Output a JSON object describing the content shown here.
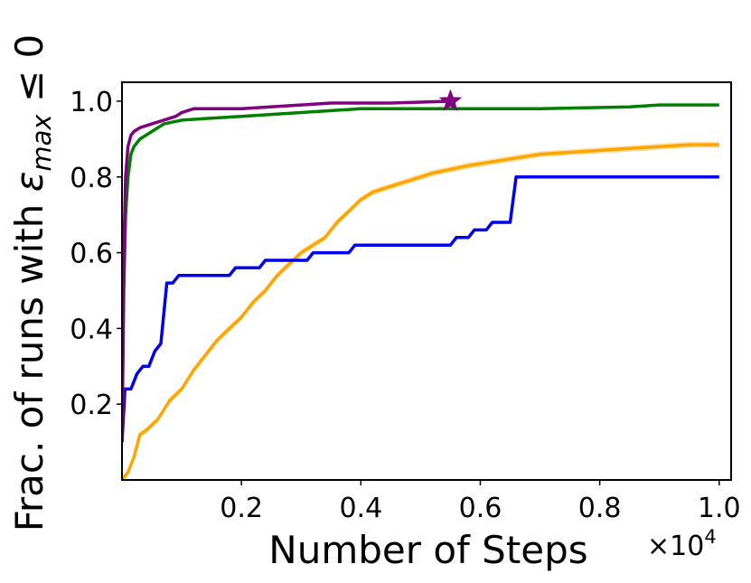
{
  "chart_data": {
    "type": "line",
    "xlabel": "Number of Steps",
    "ylabel_prefix": "Frac. of runs with ",
    "ylabel_symbol": "ε",
    "ylabel_sub": "max",
    "ylabel_suffix": " ≤ 0",
    "x_multiplier_label": "×10",
    "x_multiplier_exp": "4",
    "xlim": [
      0,
      1.02
    ],
    "ylim": [
      0,
      1.05
    ],
    "xticks": [
      0.2,
      0.4,
      0.6,
      0.8,
      1.0
    ],
    "xtick_labels": [
      "0.2",
      "0.4",
      "0.6",
      "0.8",
      "1.0"
    ],
    "yticks": [
      0.2,
      0.4,
      0.6,
      0.8,
      1.0
    ],
    "ytick_labels": [
      "0.2",
      "0.4",
      "0.6",
      "0.8",
      "1.0"
    ],
    "grid": false,
    "series": [
      {
        "color": "#FFA500",
        "band": true,
        "band_halfwidth": 0.008,
        "points": [
          [
            0.0,
            0.0
          ],
          [
            0.01,
            0.02
          ],
          [
            0.02,
            0.06
          ],
          [
            0.03,
            0.12
          ],
          [
            0.04,
            0.13
          ],
          [
            0.06,
            0.16
          ],
          [
            0.08,
            0.21
          ],
          [
            0.1,
            0.24
          ],
          [
            0.12,
            0.29
          ],
          [
            0.14,
            0.33
          ],
          [
            0.16,
            0.37
          ],
          [
            0.18,
            0.4
          ],
          [
            0.2,
            0.43
          ],
          [
            0.22,
            0.47
          ],
          [
            0.24,
            0.5
          ],
          [
            0.26,
            0.54
          ],
          [
            0.28,
            0.57
          ],
          [
            0.3,
            0.6
          ],
          [
            0.32,
            0.62
          ],
          [
            0.34,
            0.64
          ],
          [
            0.36,
            0.68
          ],
          [
            0.38,
            0.71
          ],
          [
            0.4,
            0.74
          ],
          [
            0.42,
            0.76
          ],
          [
            0.44,
            0.77
          ],
          [
            0.46,
            0.78
          ],
          [
            0.48,
            0.79
          ],
          [
            0.5,
            0.8
          ],
          [
            0.52,
            0.81
          ],
          [
            0.55,
            0.82
          ],
          [
            0.58,
            0.83
          ],
          [
            0.62,
            0.84
          ],
          [
            0.66,
            0.85
          ],
          [
            0.7,
            0.86
          ],
          [
            0.75,
            0.865
          ],
          [
            0.8,
            0.87
          ],
          [
            0.85,
            0.875
          ],
          [
            0.9,
            0.88
          ],
          [
            0.95,
            0.885
          ],
          [
            1.0,
            0.885
          ]
        ]
      },
      {
        "color": "#0000EE",
        "band": false,
        "step": true,
        "points": [
          [
            0.0,
            0.1
          ],
          [
            0.005,
            0.24
          ],
          [
            0.015,
            0.24
          ],
          [
            0.025,
            0.28
          ],
          [
            0.035,
            0.3
          ],
          [
            0.045,
            0.3
          ],
          [
            0.055,
            0.34
          ],
          [
            0.065,
            0.36
          ],
          [
            0.075,
            0.52
          ],
          [
            0.085,
            0.52
          ],
          [
            0.095,
            0.54
          ],
          [
            0.18,
            0.54
          ],
          [
            0.19,
            0.56
          ],
          [
            0.23,
            0.56
          ],
          [
            0.24,
            0.58
          ],
          [
            0.31,
            0.58
          ],
          [
            0.32,
            0.6
          ],
          [
            0.38,
            0.6
          ],
          [
            0.39,
            0.62
          ],
          [
            0.55,
            0.62
          ],
          [
            0.56,
            0.64
          ],
          [
            0.58,
            0.64
          ],
          [
            0.59,
            0.66
          ],
          [
            0.61,
            0.66
          ],
          [
            0.62,
            0.68
          ],
          [
            0.65,
            0.68
          ],
          [
            0.66,
            0.8
          ],
          [
            1.0,
            0.8
          ]
        ]
      },
      {
        "color": "#008000",
        "band": false,
        "points": [
          [
            0.0,
            0.1
          ],
          [
            0.003,
            0.5
          ],
          [
            0.006,
            0.7
          ],
          [
            0.01,
            0.8
          ],
          [
            0.015,
            0.86
          ],
          [
            0.02,
            0.88
          ],
          [
            0.03,
            0.9
          ],
          [
            0.05,
            0.92
          ],
          [
            0.07,
            0.94
          ],
          [
            0.1,
            0.95
          ],
          [
            0.15,
            0.955
          ],
          [
            0.2,
            0.96
          ],
          [
            0.25,
            0.965
          ],
          [
            0.3,
            0.97
          ],
          [
            0.35,
            0.975
          ],
          [
            0.4,
            0.98
          ],
          [
            0.5,
            0.98
          ],
          [
            0.7,
            0.98
          ],
          [
            0.85,
            0.985
          ],
          [
            0.9,
            0.99
          ],
          [
            1.0,
            0.99
          ]
        ]
      },
      {
        "color": "#800080",
        "band": false,
        "points": [
          [
            0.0,
            0.1
          ],
          [
            0.003,
            0.6
          ],
          [
            0.006,
            0.8
          ],
          [
            0.01,
            0.88
          ],
          [
            0.015,
            0.91
          ],
          [
            0.02,
            0.92
          ],
          [
            0.03,
            0.93
          ],
          [
            0.05,
            0.94
          ],
          [
            0.07,
            0.95
          ],
          [
            0.09,
            0.96
          ],
          [
            0.1,
            0.97
          ],
          [
            0.12,
            0.98
          ],
          [
            0.2,
            0.98
          ],
          [
            0.3,
            0.99
          ],
          [
            0.35,
            0.995
          ],
          [
            0.45,
            0.995
          ],
          [
            0.55,
            1.0
          ]
        ]
      }
    ],
    "markers": [
      {
        "x": 0.55,
        "y": 1.0,
        "shape": "star",
        "color": "#800080"
      }
    ]
  }
}
